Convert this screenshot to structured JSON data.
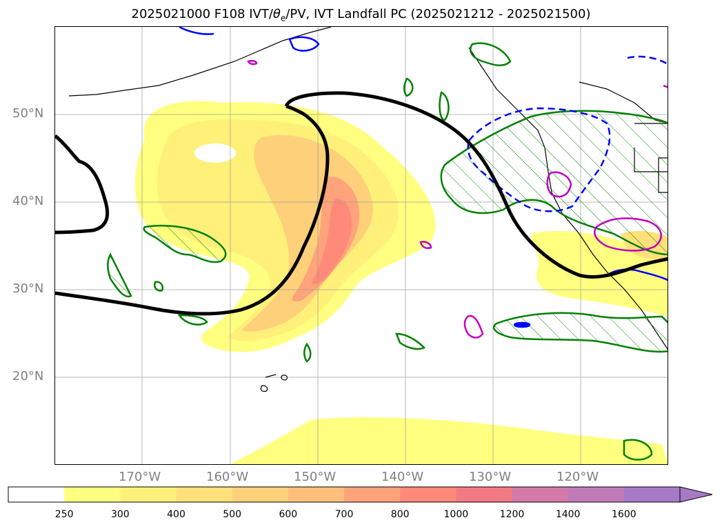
{
  "title": {
    "prefix": "2025021000 F108 IVT/",
    "theta": "θ",
    "sub": "e",
    "suffix": "/PV, IVT Landfall PC (2025021212 - 2025021500)"
  },
  "map": {
    "projection": "platecarree",
    "lon_range": [
      -180,
      -110
    ],
    "lat_range": [
      10,
      60
    ],
    "lat_labels": [
      "50°N",
      "40°N",
      "30°N",
      "20°N"
    ],
    "lon_labels": [
      "170°W",
      "160°W",
      "150°W",
      "140°W",
      "130°W",
      "120°W"
    ],
    "gridlines": true
  },
  "colorbar": {
    "ticks": [
      "250",
      "300",
      "400",
      "500",
      "600",
      "700",
      "800",
      "1000",
      "1200",
      "1400",
      "1600"
    ],
    "colors": [
      "#ffff80",
      "#fff07a",
      "#ffe07a",
      "#ffd07a",
      "#ffbf7a",
      "#ffa37a",
      "#ff8a7a",
      "#f27a85",
      "#d37aa8",
      "#c07ab8",
      "#a77ac8"
    ],
    "extend": "max"
  },
  "legend_colors": {
    "theta_e_contour": "#000000",
    "pv_hatch": "#008000",
    "blue_contour": "#0000ff",
    "magenta_contour": "#c000c0"
  }
}
